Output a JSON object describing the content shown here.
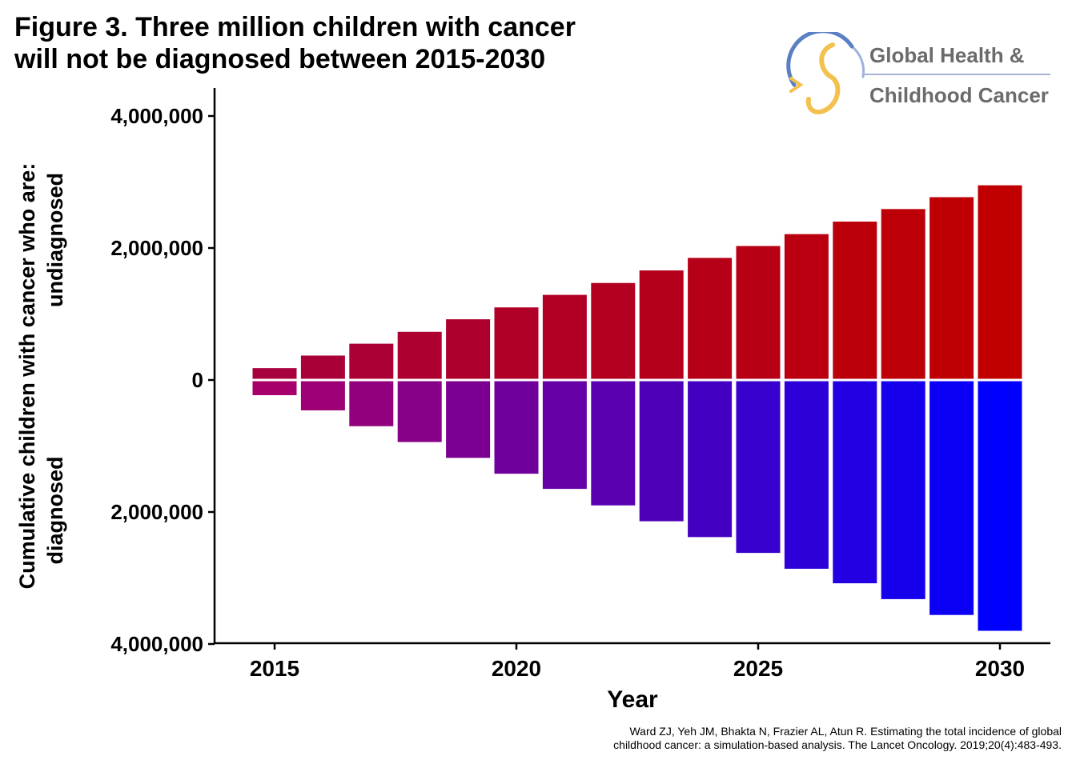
{
  "title_line1": "Figure 3. Three million children with cancer",
  "title_line2": "will not be diagnosed between 2015-2030",
  "logo": {
    "line1": "Global Health &",
    "line2": "Childhood Cancer",
    "colors": {
      "blue": "#5b7fc4",
      "gold": "#f2c14e",
      "text": "#6b6b6b"
    }
  },
  "citation_line1": "Ward ZJ, Yeh JM, Bhakta N, Frazier AL, Atun R. Estimating the total incidence of global",
  "citation_line2": "childhood cancer: a simulation-based analysis. The Lancet Oncology. 2019;20(4):483-493.",
  "chart_data": {
    "type": "bar",
    "xlabel": "Year",
    "ylabel_line1": "Cumulative children with cancer who are:",
    "ylabel_upper": "undiagnosed",
    "ylabel_lower": "diagnosed",
    "x": [
      2015,
      2016,
      2017,
      2018,
      2019,
      2020,
      2021,
      2022,
      2023,
      2024,
      2025,
      2026,
      2027,
      2028,
      2029,
      2030
    ],
    "x_ticks": [
      2015,
      2020,
      2025,
      2030
    ],
    "y_tick_values": [
      4000000,
      2000000,
      0,
      -2000000,
      -4000000
    ],
    "y_tick_labels": [
      "4,000,000",
      "2,000,000",
      "0",
      "2,000,000",
      "4,000,000"
    ],
    "ylim": [
      -4000000,
      4000000
    ],
    "series": [
      {
        "name": "undiagnosed",
        "values": [
          180000,
          370000,
          550000,
          730000,
          920000,
          1100000,
          1290000,
          1470000,
          1660000,
          1850000,
          2030000,
          2210000,
          2400000,
          2590000,
          2770000,
          2950000
        ]
      },
      {
        "name": "diagnosed",
        "values": [
          230000,
          460000,
          700000,
          940000,
          1180000,
          1420000,
          1650000,
          1900000,
          2140000,
          2380000,
          2620000,
          2860000,
          3080000,
          3320000,
          3560000,
          3800000
        ]
      }
    ],
    "colors": {
      "undiagnosed_start": "#a8003c",
      "undiagnosed_end": "#c00000",
      "diagnosed_start": "#a8006a",
      "diagnosed_end": "#0000ff"
    },
    "grid": false,
    "legend": "none"
  }
}
